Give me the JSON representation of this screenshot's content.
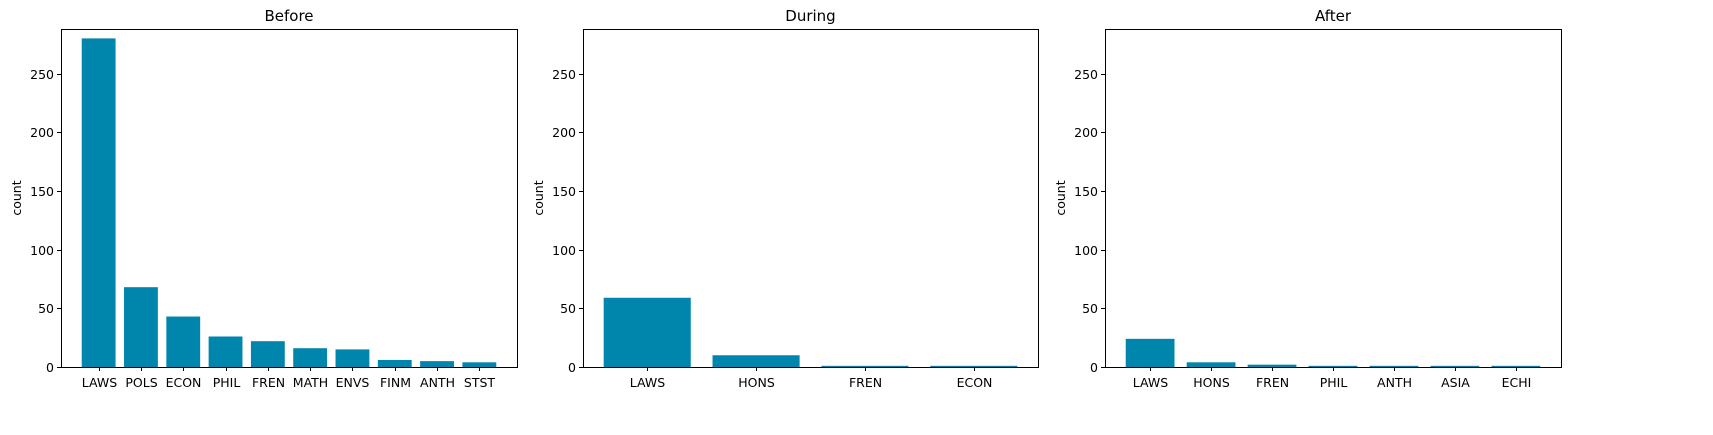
{
  "chart_data": [
    {
      "type": "bar",
      "title": "Before",
      "ylabel": "count",
      "xlabel": "",
      "ylim": [
        0,
        288
      ],
      "yticks": [
        0,
        50,
        100,
        150,
        200,
        250
      ],
      "categories": [
        "LAWS",
        "POLS",
        "ECON",
        "PHIL",
        "FREN",
        "MATH",
        "ENVS",
        "FINM",
        "ANTH",
        "STST"
      ],
      "values": [
        280,
        68,
        43,
        26,
        22,
        16,
        15,
        6,
        5,
        4
      ],
      "color": "#0086ad",
      "grid": false
    },
    {
      "type": "bar",
      "title": "During",
      "ylabel": "count",
      "xlabel": "",
      "ylim": [
        0,
        288
      ],
      "yticks": [
        0,
        50,
        100,
        150,
        200,
        250
      ],
      "categories": [
        "LAWS",
        "HONS",
        "FREN",
        "ECON"
      ],
      "values": [
        59,
        10,
        1,
        1
      ],
      "color": "#0086ad",
      "grid": false
    },
    {
      "type": "bar",
      "title": "After",
      "ylabel": "count",
      "xlabel": "",
      "ylim": [
        0,
        288
      ],
      "yticks": [
        0,
        50,
        100,
        150,
        200,
        250
      ],
      "categories": [
        "LAWS",
        "HONS",
        "FREN",
        "PHIL",
        "ANTH",
        "ASIA",
        "ECHI"
      ],
      "values": [
        24,
        4,
        2,
        1,
        1,
        1,
        1
      ],
      "color": "#0086ad",
      "grid": false
    }
  ]
}
